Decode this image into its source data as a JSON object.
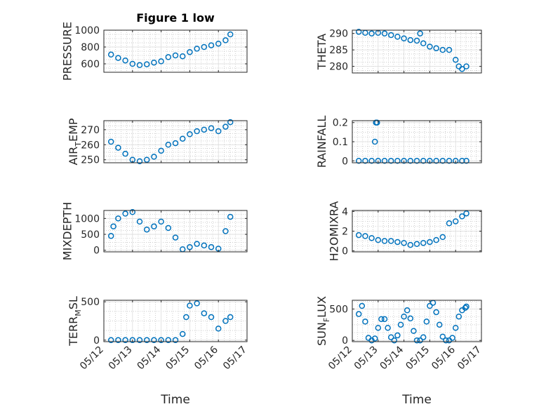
{
  "chart_data": [
    {
      "type": "scatter",
      "title": "Figure 1 low",
      "ylabel": "PRESSURE",
      "ylim": [
        500,
        1000
      ],
      "yticks": [
        600,
        800,
        1000
      ],
      "grid": true,
      "xlim": [
        "05/12",
        "05/17"
      ],
      "series": [
        {
          "x": [
            "05/12 06:00",
            "05/12 12:00",
            "05/12 18:00",
            "05/13 00:00",
            "05/13 06:00",
            "05/13 12:00",
            "05/13 18:00",
            "05/14 00:00",
            "05/14 06:00",
            "05/14 12:00",
            "05/14 18:00",
            "05/15 00:00",
            "05/15 06:00",
            "05/15 12:00",
            "05/15 18:00",
            "05/16 00:00",
            "05/16 06:00",
            "05/16 10:00"
          ],
          "y": [
            710,
            670,
            640,
            600,
            585,
            595,
            615,
            630,
            680,
            700,
            690,
            740,
            780,
            800,
            820,
            840,
            880,
            950
          ]
        }
      ]
    },
    {
      "type": "scatter",
      "ylabel": "THETA",
      "ylim": [
        278,
        291
      ],
      "yticks": [
        280,
        285,
        290
      ],
      "grid": true,
      "xlim": [
        "05/12",
        "05/17"
      ],
      "series": [
        {
          "x": [
            "05/12 06:00",
            "05/12 12:00",
            "05/12 18:00",
            "05/13 00:00",
            "05/13 06:00",
            "05/13 12:00",
            "05/13 18:00",
            "05/14 00:00",
            "05/14 06:00",
            "05/14 12:00",
            "05/14 15:00",
            "05/14 18:00",
            "05/15 00:00",
            "05/15 06:00",
            "05/15 12:00",
            "05/15 18:00",
            "05/16 00:00",
            "05/16 03:00",
            "05/16 06:00",
            "05/16 10:00"
          ],
          "y": [
            290.5,
            290.2,
            290,
            290.2,
            290,
            289.5,
            289,
            288.5,
            288,
            287.8,
            290,
            287,
            286,
            285.5,
            285,
            285,
            282,
            280,
            279.2,
            280
          ]
        }
      ]
    },
    {
      "type": "scatter",
      "ylabel": "AIR_TEMP",
      "ylabel_parts": [
        "AIR",
        "T",
        "EMP"
      ],
      "ylim": [
        248,
        276
      ],
      "yticks": [
        250,
        260,
        270
      ],
      "grid": true,
      "xlim": [
        "05/12",
        "05/17"
      ],
      "series": [
        {
          "x": [
            "05/12 06:00",
            "05/12 12:00",
            "05/12 18:00",
            "05/13 00:00",
            "05/13 06:00",
            "05/13 12:00",
            "05/13 18:00",
            "05/14 00:00",
            "05/14 06:00",
            "05/14 12:00",
            "05/14 18:00",
            "05/15 00:00",
            "05/15 06:00",
            "05/15 12:00",
            "05/15 18:00",
            "05/16 00:00",
            "05/16 06:00",
            "05/16 10:00"
          ],
          "y": [
            262,
            258,
            254,
            250,
            249,
            250,
            252,
            256,
            260,
            261,
            264,
            267,
            269,
            270,
            271,
            269,
            272,
            275
          ]
        }
      ]
    },
    {
      "type": "scatter",
      "ylabel": "RAINFALL",
      "ylim": [
        -0.01,
        0.21
      ],
      "yticks": [
        0,
        0.1,
        0.2
      ],
      "grid": true,
      "xlim": [
        "05/12",
        "05/17"
      ],
      "series": [
        {
          "x": [
            "05/12 06:00",
            "05/12 12:00",
            "05/12 18:00",
            "05/12 21:00",
            "05/12 22:00",
            "05/12 23:00",
            "05/13 00:00",
            "05/13 06:00",
            "05/13 12:00",
            "05/13 18:00",
            "05/14 00:00",
            "05/14 06:00",
            "05/14 12:00",
            "05/14 18:00",
            "05/15 00:00",
            "05/15 06:00",
            "05/15 12:00",
            "05/15 18:00",
            "05/16 00:00",
            "05/16 06:00",
            "05/16 10:00"
          ],
          "y": [
            0,
            0,
            0,
            0.1,
            0.2,
            0.2,
            0,
            0,
            0,
            0,
            0,
            0,
            0,
            0,
            0,
            0,
            0,
            0,
            0,
            0,
            0
          ]
        }
      ]
    },
    {
      "type": "scatter",
      "ylabel": "MIXDEPTH",
      "ylim": [
        -50,
        1250
      ],
      "yticks": [
        0,
        500,
        1000
      ],
      "grid": true,
      "xlim": [
        "05/12",
        "05/17"
      ],
      "series": [
        {
          "x": [
            "05/12 06:00",
            "05/12 08:00",
            "05/12 12:00",
            "05/12 18:00",
            "05/13 00:00",
            "05/13 06:00",
            "05/13 12:00",
            "05/13 18:00",
            "05/14 00:00",
            "05/14 06:00",
            "05/14 12:00",
            "05/14 18:00",
            "05/15 00:00",
            "05/15 06:00",
            "05/15 12:00",
            "05/15 18:00",
            "05/16 00:00",
            "05/16 06:00",
            "05/16 10:00"
          ],
          "y": [
            450,
            750,
            1000,
            1150,
            1200,
            900,
            650,
            750,
            900,
            700,
            400,
            30,
            100,
            200,
            150,
            100,
            50,
            600,
            1050
          ]
        }
      ]
    },
    {
      "type": "scatter",
      "ylabel": "H2OMIXRA",
      "ylim": [
        -0.1,
        4.1
      ],
      "yticks": [
        0,
        2,
        4
      ],
      "grid": true,
      "xlim": [
        "05/12",
        "05/17"
      ],
      "series": [
        {
          "x": [
            "05/12 06:00",
            "05/12 12:00",
            "05/12 18:00",
            "05/13 00:00",
            "05/13 06:00",
            "05/13 12:00",
            "05/13 18:00",
            "05/14 00:00",
            "05/14 06:00",
            "05/14 12:00",
            "05/14 18:00",
            "05/15 00:00",
            "05/15 06:00",
            "05/15 12:00",
            "05/15 18:00",
            "05/16 00:00",
            "05/16 06:00",
            "05/16 10:00"
          ],
          "y": [
            1.6,
            1.5,
            1.3,
            1.1,
            1.0,
            1.0,
            0.9,
            0.8,
            0.6,
            0.7,
            0.8,
            0.9,
            1.1,
            1.4,
            2.8,
            3.0,
            3.5,
            3.8
          ]
        }
      ]
    },
    {
      "type": "scatter",
      "ylabel": "TERR_MSL",
      "ylabel_parts": [
        "TERR",
        "M",
        "SL"
      ],
      "ylim": [
        -20,
        520
      ],
      "yticks": [
        0,
        500
      ],
      "grid": true,
      "xlim": [
        "05/12",
        "05/17"
      ],
      "xticks": [
        "05/12",
        "05/13",
        "05/14",
        "05/15",
        "05/16",
        "05/17"
      ],
      "xlabel": "Time",
      "series": [
        {
          "x": [
            "05/12 06:00",
            "05/12 12:00",
            "05/12 18:00",
            "05/13 00:00",
            "05/13 06:00",
            "05/13 12:00",
            "05/13 18:00",
            "05/14 00:00",
            "05/14 06:00",
            "05/14 12:00",
            "05/14 18:00",
            "05/14 21:00",
            "05/15 00:00",
            "05/15 06:00",
            "05/15 12:00",
            "05/15 18:00",
            "05/16 00:00",
            "05/16 06:00",
            "05/16 10:00"
          ],
          "y": [
            0,
            0,
            0,
            0,
            0,
            0,
            0,
            0,
            0,
            0,
            80,
            300,
            450,
            480,
            350,
            300,
            150,
            250,
            300
          ]
        }
      ]
    },
    {
      "type": "scatter",
      "ylabel": "SUN_FLUX",
      "ylabel_parts": [
        "SUN",
        "F",
        "LUX"
      ],
      "ylim": [
        -20,
        640
      ],
      "yticks": [
        0,
        500
      ],
      "grid": true,
      "xlim": [
        "05/12",
        "05/17"
      ],
      "xticks": [
        "05/12",
        "05/13",
        "05/14",
        "05/15",
        "05/16",
        "05/17"
      ],
      "xlabel": "Time",
      "series": [
        {
          "x": [
            "05/12 06:00",
            "05/12 09:00",
            "05/12 12:00",
            "05/12 15:00",
            "05/12 18:00",
            "05/12 21:00",
            "05/13 00:00",
            "05/13 03:00",
            "05/13 06:00",
            "05/13 09:00",
            "05/13 12:00",
            "05/13 15:00",
            "05/13 18:00",
            "05/13 21:00",
            "05/14 00:00",
            "05/14 03:00",
            "05/14 06:00",
            "05/14 09:00",
            "05/14 12:00",
            "05/14 15:00",
            "05/14 18:00",
            "05/14 21:00",
            "05/15 00:00",
            "05/15 03:00",
            "05/15 06:00",
            "05/15 09:00",
            "05/15 12:00",
            "05/15 15:00",
            "05/15 18:00",
            "05/15 21:00",
            "05/16 00:00",
            "05/16 03:00",
            "05/16 06:00",
            "05/16 09:00",
            "05/16 10:00"
          ],
          "y": [
            420,
            550,
            300,
            40,
            0,
            30,
            200,
            340,
            340,
            200,
            50,
            0,
            80,
            250,
            380,
            480,
            350,
            150,
            0,
            0,
            50,
            300,
            550,
            600,
            450,
            250,
            60,
            0,
            0,
            40,
            200,
            380,
            480,
            520,
            540
          ]
        }
      ]
    }
  ]
}
